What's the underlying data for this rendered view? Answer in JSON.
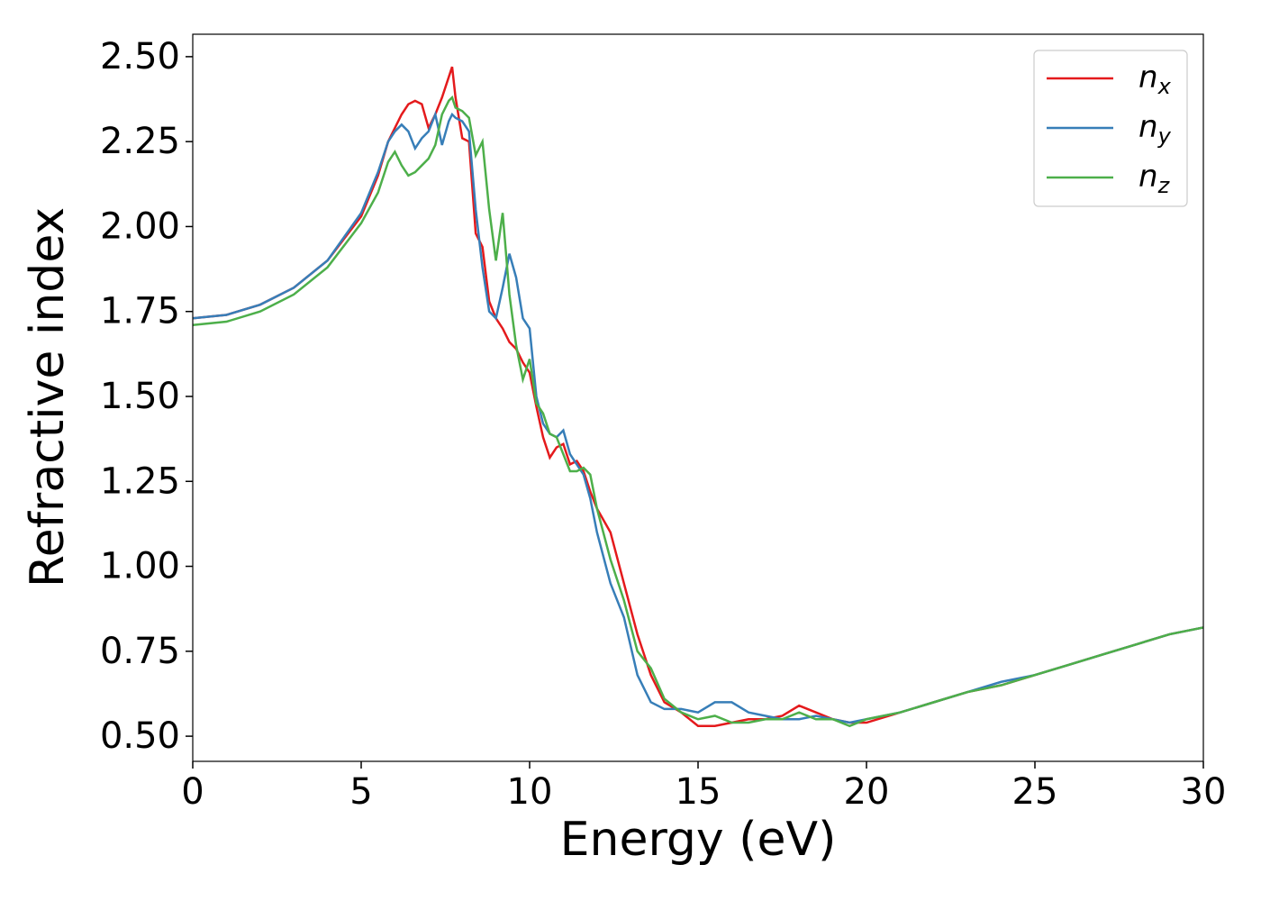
{
  "chart_data": {
    "type": "line",
    "x_label": "Energy (eV)",
    "y_label": "Refractive index",
    "x": [
      0,
      1,
      2,
      3,
      4,
      5,
      5.5,
      5.8,
      6,
      6.2,
      6.4,
      6.6,
      6.8,
      7,
      7.2,
      7.4,
      7.6,
      7.7,
      7.8,
      8,
      8.2,
      8.4,
      8.6,
      8.8,
      9,
      9.2,
      9.4,
      9.6,
      9.8,
      10,
      10.2,
      10.4,
      10.6,
      10.8,
      11,
      11.2,
      11.4,
      11.6,
      11.8,
      12,
      12.4,
      12.8,
      13.2,
      13.6,
      14,
      14.5,
      15,
      15.5,
      16,
      16.5,
      17,
      17.5,
      18,
      18.5,
      19,
      19.5,
      20,
      21,
      22,
      23,
      24,
      25,
      26,
      27,
      28,
      29,
      30
    ],
    "series": [
      {
        "name": "nx",
        "color": "#e41a1c",
        "values": [
          1.73,
          1.74,
          1.77,
          1.82,
          1.9,
          2.03,
          2.15,
          2.25,
          2.29,
          2.33,
          2.36,
          2.37,
          2.36,
          2.29,
          2.33,
          2.38,
          2.44,
          2.47,
          2.38,
          2.26,
          2.25,
          1.98,
          1.94,
          1.78,
          1.73,
          1.7,
          1.66,
          1.64,
          1.6,
          1.57,
          1.47,
          1.38,
          1.32,
          1.35,
          1.36,
          1.3,
          1.31,
          1.28,
          1.22,
          1.17,
          1.1,
          0.95,
          0.8,
          0.68,
          0.6,
          0.57,
          0.53,
          0.53,
          0.54,
          0.55,
          0.55,
          0.56,
          0.59,
          0.57,
          0.55,
          0.54,
          0.54,
          0.57,
          0.6,
          0.63,
          0.65,
          0.68,
          0.71,
          0.74,
          0.77,
          0.8,
          0.82
        ]
      },
      {
        "name": "ny",
        "color": "#377eb8",
        "values": [
          1.73,
          1.74,
          1.77,
          1.82,
          1.9,
          2.04,
          2.16,
          2.25,
          2.28,
          2.3,
          2.28,
          2.23,
          2.26,
          2.28,
          2.33,
          2.24,
          2.31,
          2.33,
          2.32,
          2.31,
          2.28,
          2.05,
          1.88,
          1.75,
          1.73,
          1.82,
          1.92,
          1.85,
          1.73,
          1.7,
          1.5,
          1.42,
          1.39,
          1.38,
          1.4,
          1.33,
          1.3,
          1.27,
          1.2,
          1.1,
          0.95,
          0.85,
          0.68,
          0.6,
          0.58,
          0.58,
          0.57,
          0.6,
          0.6,
          0.57,
          0.56,
          0.55,
          0.55,
          0.56,
          0.55,
          0.54,
          0.55,
          0.57,
          0.6,
          0.63,
          0.66,
          0.68,
          0.71,
          0.74,
          0.77,
          0.8,
          0.82
        ]
      },
      {
        "name": "nz",
        "color": "#4daf4a",
        "values": [
          1.71,
          1.72,
          1.75,
          1.8,
          1.88,
          2.01,
          2.1,
          2.19,
          2.22,
          2.18,
          2.15,
          2.16,
          2.18,
          2.2,
          2.24,
          2.33,
          2.37,
          2.38,
          2.35,
          2.34,
          2.32,
          2.21,
          2.25,
          2.05,
          1.9,
          2.04,
          1.8,
          1.65,
          1.55,
          1.61,
          1.48,
          1.45,
          1.39,
          1.38,
          1.33,
          1.28,
          1.28,
          1.29,
          1.27,
          1.17,
          1.02,
          0.9,
          0.75,
          0.7,
          0.61,
          0.57,
          0.55,
          0.56,
          0.54,
          0.54,
          0.55,
          0.55,
          0.57,
          0.55,
          0.55,
          0.53,
          0.55,
          0.57,
          0.6,
          0.63,
          0.65,
          0.68,
          0.71,
          0.74,
          0.77,
          0.8,
          0.82
        ]
      }
    ],
    "xlim": [
      0,
      30
    ],
    "xticks": [
      0,
      5,
      10,
      15,
      20,
      25,
      30
    ],
    "ylim": [
      0.426,
      2.566
    ],
    "yticks": [
      {
        "value": 0.5,
        "label": "0.50"
      },
      0.75,
      {
        "value": 1,
        "label": "1.00"
      },
      1.25,
      {
        "value": 1.5,
        "label": "1.50"
      },
      1.75,
      {
        "value": 2,
        "label": "2.00"
      },
      2.25,
      {
        "value": 2.5,
        "label": "2.50"
      }
    ],
    "grid": false,
    "legend": "upper right"
  }
}
